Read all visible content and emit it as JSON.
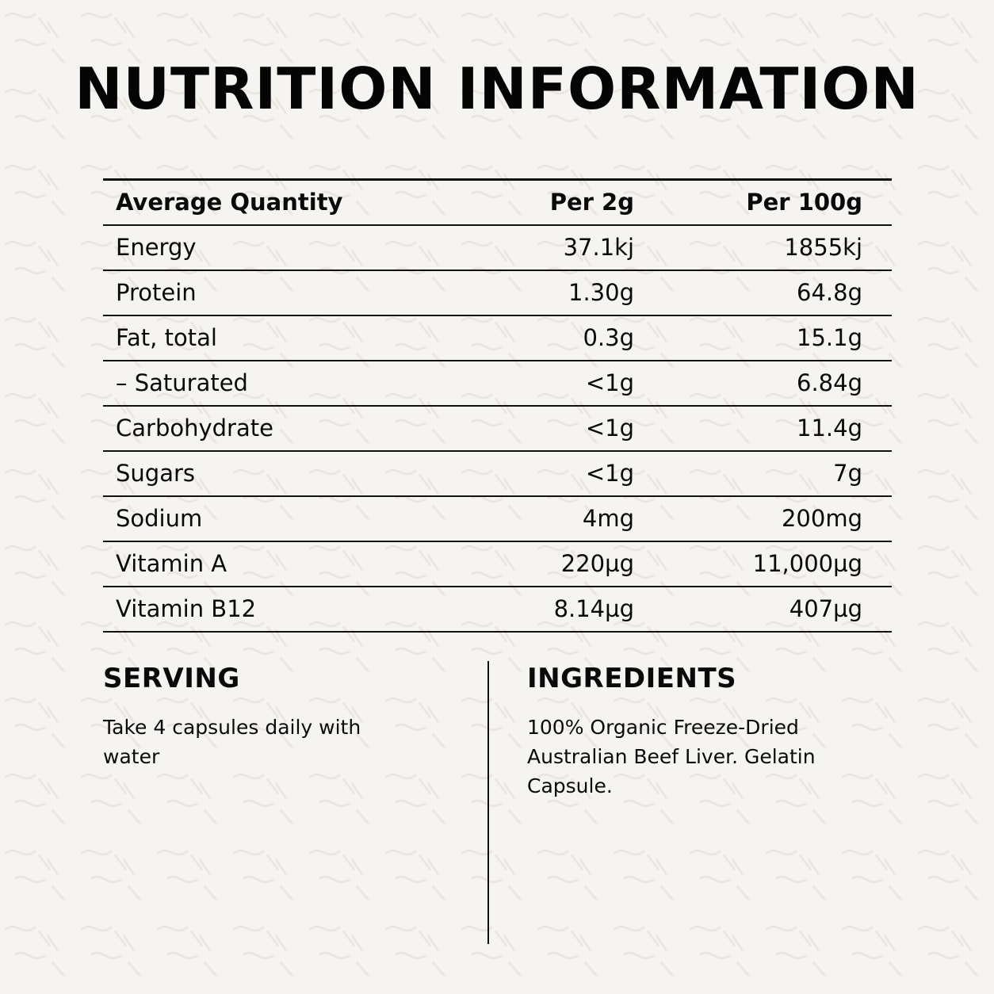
{
  "title": "NUTRITION INFORMATION",
  "table": {
    "headers": [
      "Average Quantity",
      "Per 2g",
      "Per 100g"
    ],
    "rows": [
      [
        "Energy",
        "37.1kj",
        "1855kj"
      ],
      [
        "Protein",
        "1.30g",
        "64.8g"
      ],
      [
        "Fat, total",
        "0.3g",
        "15.1g"
      ],
      [
        "– Saturated",
        "<1g",
        "6.84g"
      ],
      [
        "Carbohydrate",
        "<1g",
        "11.4g"
      ],
      [
        "Sugars",
        "<1g",
        "7g"
      ],
      [
        "Sodium",
        "4mg",
        "200mg"
      ],
      [
        "Vitamin A",
        "220µg",
        "11,000µg"
      ],
      [
        "Vitamin B12",
        "8.14µg",
        "407µg"
      ]
    ]
  },
  "serving": {
    "heading": "SERVING",
    "text": "Take 4 capsules daily with water"
  },
  "ingredients": {
    "heading": "INGREDIENTS",
    "text": "100% Organic Freeze-Dried Australian Beef Liver. Gelatin Capsule."
  },
  "colors": {
    "background": "#f6f4f0",
    "text": "#0a0a0a",
    "rule": "#111111"
  }
}
